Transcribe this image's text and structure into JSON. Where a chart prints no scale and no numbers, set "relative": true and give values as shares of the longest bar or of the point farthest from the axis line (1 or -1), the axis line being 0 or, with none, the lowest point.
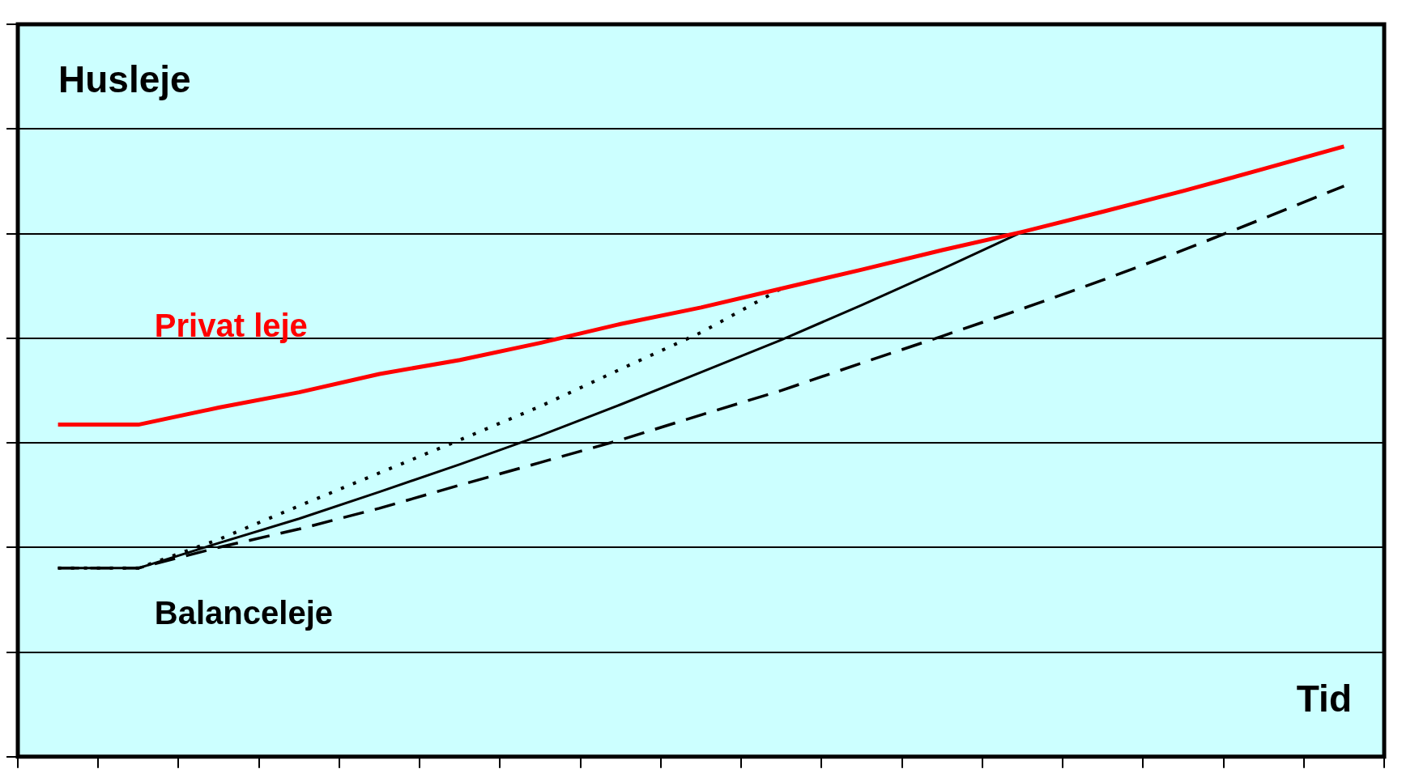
{
  "chart_data": {
    "type": "line",
    "relative": true,
    "ylabel": "Husleje",
    "xlabel": "Tid",
    "grid": "y",
    "legend": false,
    "marker": "none",
    "categories": [
      null,
      null,
      null,
      null,
      null,
      null,
      null,
      null,
      null,
      null,
      null,
      null,
      null,
      null,
      null,
      null,
      null
    ],
    "series": [
      {
        "name": "Balanceleje",
        "color": "#000000",
        "line_style": "solid",
        "values": [
          0.309,
          0.309,
          0.35,
          0.39,
          0.434,
          0.479,
          0.526,
          0.577,
          0.63,
          0.683,
          0.74,
          0.799,
          0.86,
          null,
          null,
          null,
          null
        ]
      },
      {
        "color": "#000000",
        "line_style": "dotted",
        "values": [
          0.309,
          0.309,
          0.356,
          0.411,
          0.465,
          0.519,
          0.574,
          0.635,
          0.695,
          0.767,
          null,
          null,
          null,
          null,
          null,
          null,
          null
        ]
      },
      {
        "color": "#000000",
        "line_style": "dashed",
        "values": [
          0.309,
          0.309,
          0.343,
          0.373,
          0.407,
          0.445,
          0.482,
          0.519,
          0.56,
          0.6,
          0.645,
          0.689,
          0.734,
          0.781,
          0.83,
          0.882,
          0.935
        ]
      },
      {
        "name": "Privat leje",
        "color": "#ff0000",
        "line_style": "solid",
        "values": [
          0.544,
          0.544,
          0.572,
          0.597,
          0.627,
          0.65,
          0.678,
          0.709,
          0.736,
          0.767,
          0.798,
          0.83,
          0.86,
          0.893,
          0.927,
          0.963,
          1
        ]
      }
    ]
  }
}
